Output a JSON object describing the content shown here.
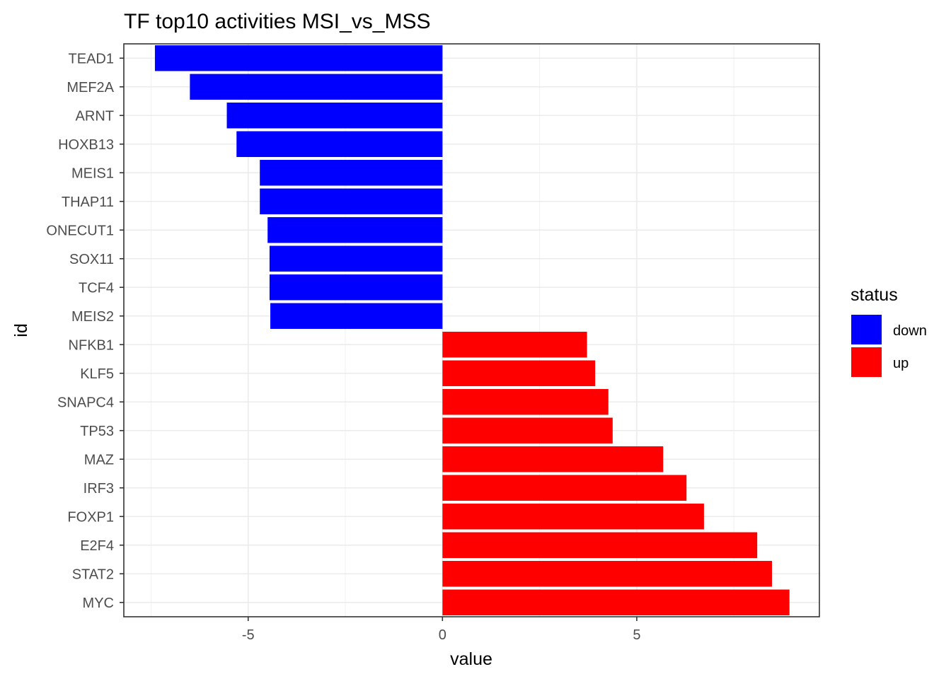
{
  "chart_data": {
    "type": "bar",
    "orientation": "horizontal",
    "title": "TF top10 activities MSI_vs_MSS",
    "xlabel": "value",
    "ylabel": "id",
    "xlim": [
      -8.2,
      9.7
    ],
    "x_ticks": [
      -5,
      0,
      5
    ],
    "x_tick_labels": [
      "-5",
      "0",
      "5"
    ],
    "grid": true,
    "legend": {
      "title": "status",
      "position": "right",
      "entries": [
        {
          "label": "down",
          "color": "#0000ff"
        },
        {
          "label": "up",
          "color": "#ff0000"
        }
      ]
    },
    "categories": [
      "TEAD1",
      "MEF2A",
      "ARNT",
      "HOXB13",
      "MEIS1",
      "THAP11",
      "ONECUT1",
      "SOX11",
      "TCF4",
      "MEIS2",
      "NFKB1",
      "KLF5",
      "SNAPC4",
      "TP53",
      "MAZ",
      "IRF3",
      "FOXP1",
      "E2F4",
      "STAT2",
      "MYC"
    ],
    "values": [
      -7.4,
      -6.5,
      -5.55,
      -5.3,
      -4.7,
      -4.7,
      -4.5,
      -4.45,
      -4.45,
      -4.43,
      3.72,
      3.93,
      4.27,
      4.38,
      5.68,
      6.28,
      6.73,
      8.1,
      8.48,
      8.93
    ],
    "status": [
      "down",
      "down",
      "down",
      "down",
      "down",
      "down",
      "down",
      "down",
      "down",
      "down",
      "up",
      "up",
      "up",
      "up",
      "up",
      "up",
      "up",
      "up",
      "up",
      "up"
    ],
    "colors": {
      "down": "#0000ff",
      "up": "#ff0000"
    }
  }
}
